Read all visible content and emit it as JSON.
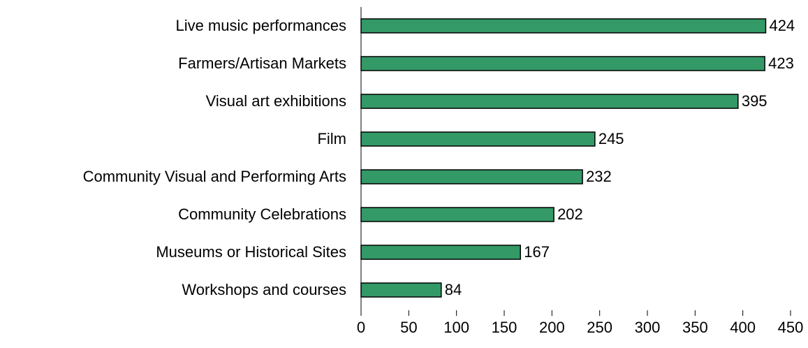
{
  "chart_data": {
    "type": "bar",
    "orientation": "horizontal",
    "categories": [
      "Live music performances",
      "Farmers/Artisan Markets",
      "Visual art exhibitions",
      "Film",
      "Community Visual and Performing Arts",
      "Community Celebrations",
      "Museums or Historical Sites",
      "Workshops and courses"
    ],
    "values": [
      424,
      423,
      395,
      245,
      232,
      202,
      167,
      84
    ],
    "color": "#339966",
    "xlim": [
      0,
      450
    ],
    "xticks": [
      0,
      50,
      100,
      150,
      200,
      250,
      300,
      350,
      400,
      450
    ]
  }
}
